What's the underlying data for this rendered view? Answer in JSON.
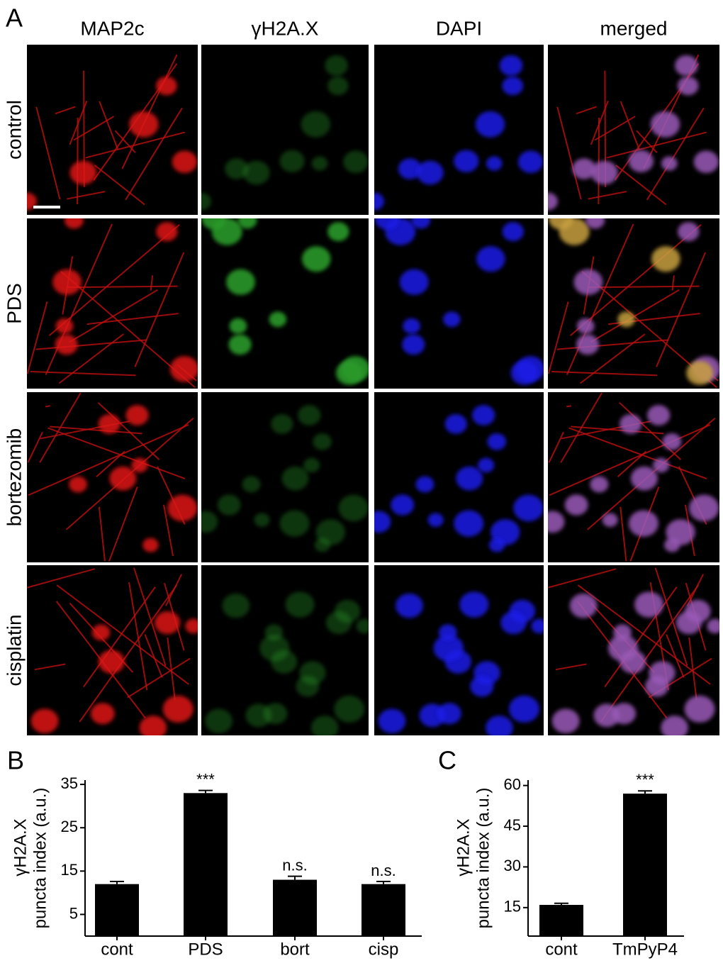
{
  "panel_a": {
    "label": "A",
    "columns": [
      "MAP2c",
      "γH2A.X",
      "DAPI",
      "merged"
    ],
    "rows": [
      "control",
      "PDS",
      "bortezomib",
      "cisplatin"
    ]
  },
  "chart_data": [
    {
      "type": "bar",
      "panel_label": "B",
      "y_label_line1": "γH2A.X",
      "y_label_line2": "puncta index (a.u.)",
      "categories": [
        "cont",
        "PDS",
        "bort",
        "cisp"
      ],
      "values": [
        12,
        33,
        13,
        12
      ],
      "errors": [
        0.6,
        0.6,
        0.8,
        0.6
      ],
      "annotations": [
        null,
        "***",
        "n.s.",
        "n.s."
      ],
      "ylim": [
        0,
        36
      ],
      "yticks": [
        5,
        15,
        25,
        35
      ],
      "color": "#000000"
    },
    {
      "type": "bar",
      "panel_label": "C",
      "y_label_line1": "γH2A.X",
      "y_label_line2": "puncta index (a.u.)",
      "categories": [
        "cont",
        "TmPyP4"
      ],
      "values": [
        16,
        57
      ],
      "errors": [
        0.6,
        1
      ],
      "annotations": [
        null,
        "***"
      ],
      "ylim": [
        4.5,
        62
      ],
      "yticks": [
        15,
        30,
        45,
        60
      ],
      "color": "#000000"
    }
  ]
}
